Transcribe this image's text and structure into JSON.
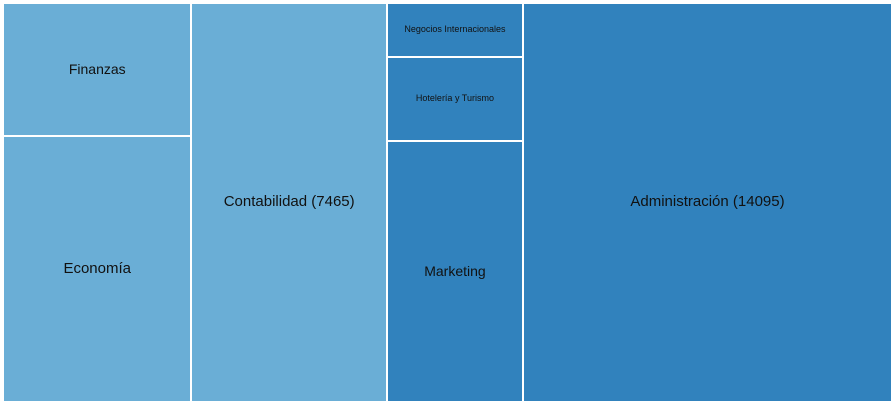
{
  "chart_data": {
    "type": "treemap",
    "title": "",
    "colors": {
      "light": "#6aaed6",
      "dark": "#3182bd",
      "border": "#ffffff",
      "text": "#111111"
    },
    "groups": [
      {
        "items": [
          {
            "name": "Finanzas",
            "label": "Finanzas",
            "value": 2400,
            "color": "#6aaed6"
          },
          {
            "name": "Economía",
            "label": "Economía",
            "value": 4800,
            "color": "#6aaed6"
          }
        ]
      },
      {
        "items": [
          {
            "name": "Contabilidad",
            "label": "Contabilidad (7465)",
            "value": 7465,
            "color": "#6aaed6"
          }
        ]
      },
      {
        "items": [
          {
            "name": "Negocios Internacionales",
            "label": "Negocios Internacionales",
            "value": 700,
            "color": "#3182bd"
          },
          {
            "name": "Hotelería y Turismo",
            "label": "Hotelería y Turismo",
            "value": 1100,
            "color": "#3182bd"
          },
          {
            "name": "Marketing",
            "label": "Marketing",
            "value": 3400,
            "color": "#3182bd"
          }
        ]
      },
      {
        "items": [
          {
            "name": "Administración",
            "label": "Administración (14095)",
            "value": 14095,
            "color": "#3182bd"
          }
        ]
      }
    ]
  }
}
